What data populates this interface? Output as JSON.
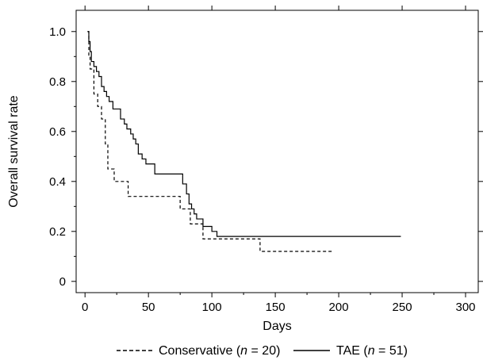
{
  "chart_data": {
    "type": "line",
    "step": true,
    "xlabel": "Days",
    "ylabel": "Overall survival rate",
    "xlim": [
      -7,
      310
    ],
    "ylim": [
      -0.045,
      1.085
    ],
    "xticks": [
      0,
      50,
      100,
      150,
      200,
      250,
      300
    ],
    "yticks": [
      0,
      0.2,
      0.4,
      0.6,
      0.8,
      1.0
    ],
    "xtick_labels": [
      "0",
      "50",
      "100",
      "150",
      "200",
      "250",
      "300"
    ],
    "ytick_labels": [
      "0",
      "0.2",
      "0.4",
      "0.6",
      "0.8",
      "1.0"
    ],
    "grid": false,
    "legend_position": "bottom",
    "legend": [
      {
        "prefix": "Conservative (",
        "italic": "n",
        "suffix": " = 20)"
      },
      {
        "prefix": "TAE (",
        "italic": "n",
        "suffix": " = 51)"
      }
    ],
    "series": [
      {
        "name": "Conservative (n = 20)",
        "dash": "dashed",
        "x": [
          2,
          3,
          4,
          7,
          10,
          13,
          16,
          18,
          23,
          34,
          75,
          83,
          93,
          138,
          195
        ],
        "y": [
          1.0,
          0.9,
          0.85,
          0.75,
          0.7,
          0.65,
          0.55,
          0.45,
          0.4,
          0.34,
          0.29,
          0.23,
          0.17,
          0.12,
          0.12
        ]
      },
      {
        "name": "TAE (n = 51)",
        "dash": "solid",
        "x": [
          2,
          3,
          4,
          5,
          7,
          9,
          11,
          13,
          15,
          17,
          19,
          22,
          28,
          31,
          33,
          36,
          38,
          40,
          42,
          45,
          48,
          55,
          65,
          77,
          80,
          82,
          84,
          86,
          88,
          93,
          100,
          104,
          249
        ],
        "y": [
          1.0,
          0.96,
          0.92,
          0.88,
          0.86,
          0.84,
          0.82,
          0.78,
          0.76,
          0.74,
          0.72,
          0.69,
          0.65,
          0.63,
          0.61,
          0.59,
          0.57,
          0.55,
          0.51,
          0.49,
          0.47,
          0.43,
          0.43,
          0.39,
          0.35,
          0.31,
          0.29,
          0.27,
          0.25,
          0.22,
          0.2,
          0.18,
          0.18
        ]
      }
    ]
  }
}
